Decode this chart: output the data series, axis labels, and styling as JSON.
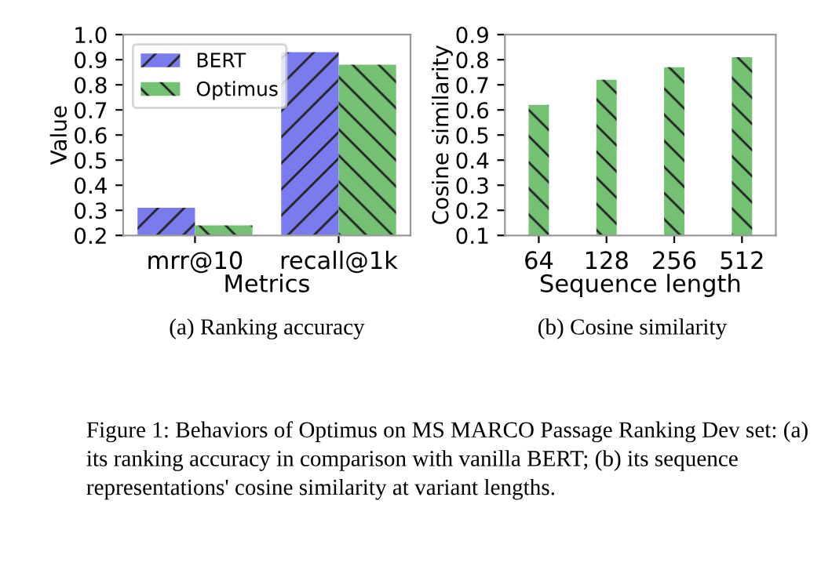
{
  "chart_data": [
    {
      "type": "bar",
      "categories": [
        "mrr@10",
        "recall@1k"
      ],
      "xlabel": "Metrics",
      "ylabel": "Value",
      "ylim": [
        0.2,
        1.0
      ],
      "yticks": [
        0.2,
        0.3,
        0.4,
        0.5,
        0.6,
        0.7,
        0.8,
        0.9,
        {
          "value": 1.0,
          "label": "1.0"
        }
      ],
      "grid": false,
      "legend": "top left",
      "series": [
        {
          "name": "BERT",
          "color": "#7b7bf0",
          "values": [
            0.31,
            0.93
          ]
        },
        {
          "name": "Optimus",
          "color": "#74c174",
          "values": [
            0.24,
            0.88
          ]
        }
      ],
      "annotations": [
        "(a) Ranking accuracy"
      ]
    },
    {
      "type": "bar",
      "categories": [
        "64",
        "128",
        "256",
        "512"
      ],
      "xlabel": "Sequence length",
      "ylabel": "Cosine similarity",
      "ylim": [
        0.1,
        0.9
      ],
      "yticks": [
        0.1,
        0.2,
        0.3,
        0.4,
        0.5,
        0.6,
        0.7,
        0.8,
        0.9
      ],
      "grid": false,
      "legend": false,
      "series": [
        {
          "color": "#74c174",
          "values": [
            0.62,
            0.72,
            0.77,
            0.81
          ]
        }
      ],
      "annotations": [
        "(b) Cosine similarity",
        "Figure 1: Behaviors of Optimus on MS MARCO Passage Ranking Dev set: (a) its ranking accuracy in comparison with vanilla BERT; (b) its sequence representations' cosine similarity at variant lengths."
      ]
    }
  ]
}
